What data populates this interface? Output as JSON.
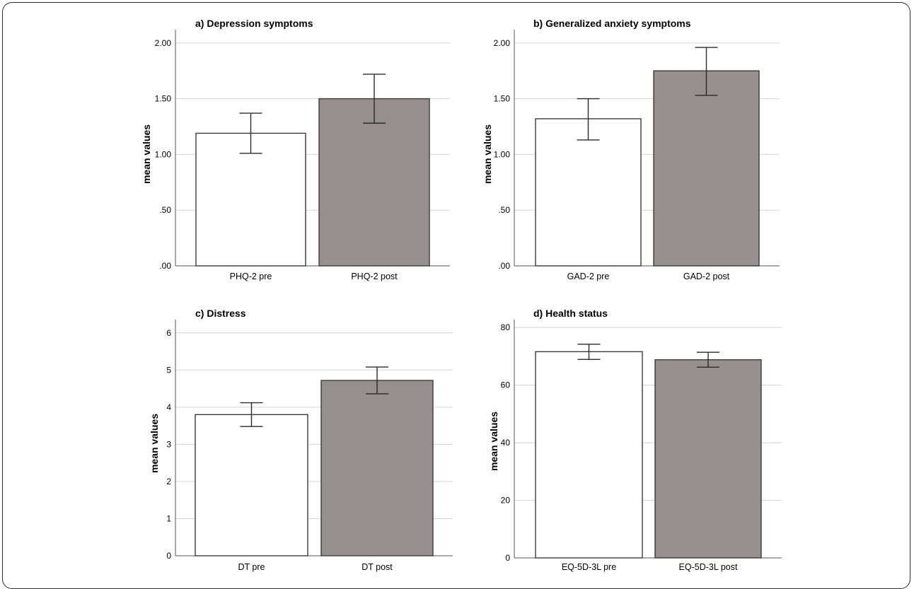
{
  "figure": {
    "bar_colors": [
      "#ffffff",
      "#958f8d"
    ],
    "error_bar_color": "#2a2a2a",
    "grid_color": "#d4d4d4"
  },
  "chart_data": [
    {
      "type": "bar",
      "title": "a) Depression symptoms",
      "ylabel": "mean values",
      "categories": [
        "PHQ-2 pre",
        "PHQ-2 post"
      ],
      "values": [
        1.19,
        1.5
      ],
      "error_low": [
        1.01,
        1.28
      ],
      "error_high": [
        1.37,
        1.72
      ],
      "ylim": [
        0,
        2.1
      ],
      "yticks": [
        0,
        0.5,
        1.0,
        1.5,
        2.0
      ],
      "ytick_labels": [
        ".00",
        ".50",
        "1.00",
        "1.50",
        "2.00"
      ],
      "grid": true
    },
    {
      "type": "bar",
      "title": "b) Generalized anxiety symptoms",
      "ylabel": "mean values",
      "categories": [
        "GAD-2 pre",
        "GAD-2 post"
      ],
      "values": [
        1.32,
        1.75
      ],
      "error_low": [
        1.13,
        1.53
      ],
      "error_high": [
        1.5,
        1.96
      ],
      "ylim": [
        0,
        2.1
      ],
      "yticks": [
        0,
        0.5,
        1.0,
        1.5,
        2.0
      ],
      "ytick_labels": [
        ".00",
        ".50",
        "1.00",
        "1.50",
        "2.00"
      ],
      "grid": true
    },
    {
      "type": "bar",
      "title": "c) Distress",
      "ylabel": "mean values",
      "categories": [
        "DT pre",
        "DT post"
      ],
      "values": [
        3.8,
        4.72
      ],
      "error_low": [
        3.48,
        4.36
      ],
      "error_high": [
        4.12,
        5.08
      ],
      "ylim": [
        0,
        6.3
      ],
      "yticks": [
        0,
        1,
        2,
        3,
        4,
        5,
        6
      ],
      "ytick_labels": [
        "0",
        "1",
        "2",
        "3",
        "4",
        "5",
        "6"
      ],
      "grid": true
    },
    {
      "type": "bar",
      "title": "d) Health status",
      "ylabel": "mean values",
      "categories": [
        "EQ-5D-3L pre",
        "EQ-5D-3L post"
      ],
      "values": [
        71.6,
        68.8
      ],
      "error_low": [
        68.9,
        66.2
      ],
      "error_high": [
        74.2,
        71.4
      ],
      "ylim": [
        0,
        82
      ],
      "yticks": [
        0,
        20,
        40,
        60,
        80
      ],
      "ytick_labels": [
        "0",
        "20",
        "40",
        "60",
        "80"
      ],
      "grid": true
    }
  ]
}
